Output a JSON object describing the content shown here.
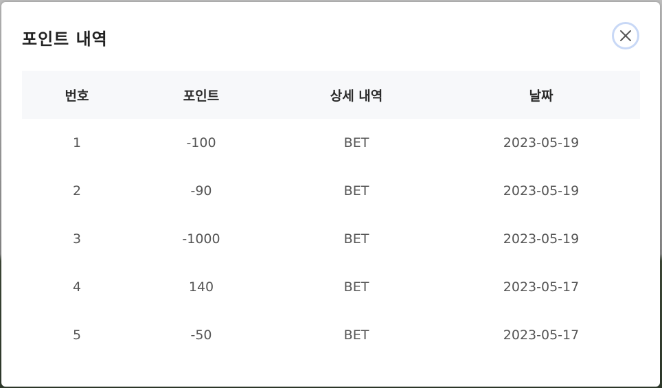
{
  "modal": {
    "title": "포인트 내역",
    "close_icon": "close-icon"
  },
  "table": {
    "headers": [
      "번호",
      "포인트",
      "상세 내역",
      "날짜"
    ],
    "rows": [
      {
        "no": "1",
        "point": "-100",
        "detail": "BET",
        "date": "2023-05-19"
      },
      {
        "no": "2",
        "point": "-90",
        "detail": "BET",
        "date": "2023-05-19"
      },
      {
        "no": "3",
        "point": "-1000",
        "detail": "BET",
        "date": "2023-05-19"
      },
      {
        "no": "4",
        "point": "140",
        "detail": "BET",
        "date": "2023-05-17"
      },
      {
        "no": "5",
        "point": "-50",
        "detail": "BET",
        "date": "2023-05-17"
      }
    ]
  },
  "colors": {
    "header_bg": "#f7f8fa",
    "close_ring": "#c8d8f6",
    "text": "#555555"
  }
}
